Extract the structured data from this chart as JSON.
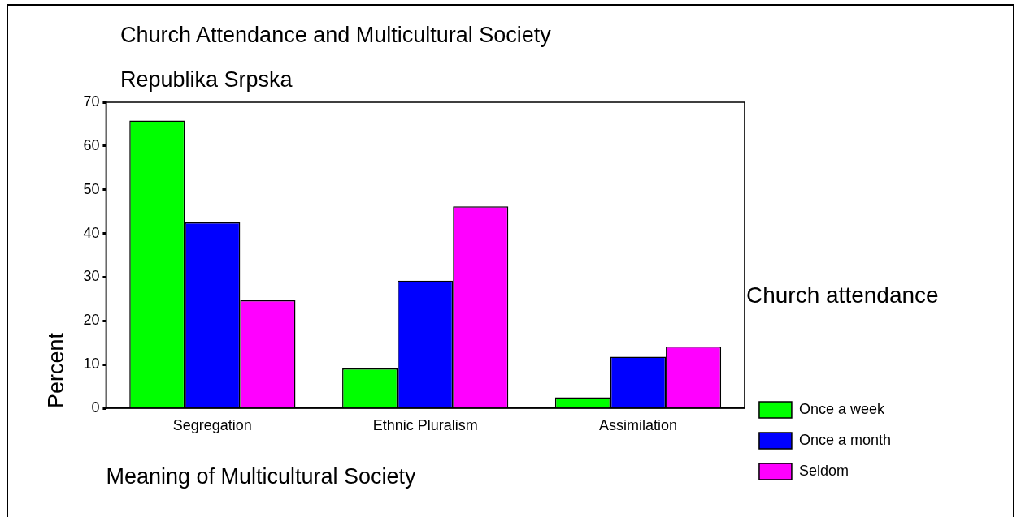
{
  "chart_data": {
    "type": "bar",
    "title": "Church Attendance and Multicultural Society",
    "subtitle": "Republika Srpska",
    "xlabel": "Meaning of Multicultural Society",
    "ylabel": "Percent",
    "legend_title": "Church attendance",
    "categories": [
      "Segregation",
      "Ethnic Pluralism",
      "Assimilation"
    ],
    "series": [
      {
        "name": "Once a week",
        "color": "#00ff00",
        "values": [
          65.8,
          9.1,
          2.5
        ]
      },
      {
        "name": "Once a month",
        "color": "#0000ff",
        "values": [
          42.5,
          29.2,
          11.8
        ]
      },
      {
        "name": "Seldom",
        "color": "#ff00ff",
        "values": [
          24.7,
          46.2,
          14.1
        ]
      }
    ],
    "ylim": [
      0,
      70
    ],
    "yticks": [
      0,
      10,
      20,
      30,
      40,
      50,
      60,
      70
    ],
    "legend": "right"
  }
}
